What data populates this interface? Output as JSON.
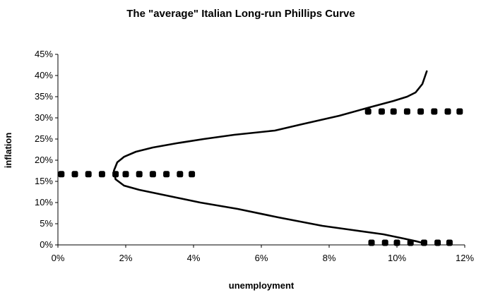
{
  "chart_data": {
    "type": "line",
    "title": "The \"average\" Italian Long-run Phillips Curve",
    "xlabel": "unemployment",
    "ylabel": "inflation",
    "xlim": [
      0,
      12
    ],
    "ylim": [
      0,
      45
    ],
    "x_ticks": [
      "0%",
      "2%",
      "4%",
      "6%",
      "8%",
      "10%",
      "12%"
    ],
    "y_ticks": [
      "0%",
      "5%",
      "10%",
      "15%",
      "20%",
      "25%",
      "30%",
      "35%",
      "40%",
      "45%"
    ],
    "grid": false,
    "legend": "none",
    "series": [
      {
        "style": "solid",
        "color": "#000000",
        "x": [
          10.88,
          10.75,
          10.55,
          10.3,
          9.9,
          9.2,
          8.3,
          7.2,
          6.4,
          5.2,
          4.3,
          3.5,
          2.8,
          2.3,
          1.95,
          1.75,
          1.65,
          1.7,
          1.95,
          2.4,
          3.3,
          4.2,
          5.3,
          6.5,
          7.8,
          8.7,
          9.6,
          10.2,
          10.6,
          10.85
        ],
        "y": [
          41,
          38,
          36,
          35,
          34,
          32.5,
          30.5,
          28.5,
          27,
          26,
          25,
          24,
          23,
          22,
          20.8,
          19.5,
          17.5,
          15.5,
          14,
          13,
          11.5,
          10,
          8.5,
          6.5,
          4.5,
          3.5,
          2.5,
          1.5,
          0.8,
          0.3
        ]
      },
      {
        "style": "dotted",
        "color": "#000000",
        "x": [
          0.1,
          0.5,
          0.9,
          1.3,
          1.7,
          2.0,
          2.4,
          2.8,
          3.2,
          3.6,
          3.95
        ],
        "y": [
          16.7,
          16.7,
          16.7,
          16.7,
          16.7,
          16.7,
          16.7,
          16.7,
          16.7,
          16.7,
          16.7
        ]
      },
      {
        "style": "dotted",
        "color": "#000000",
        "x": [
          9.15,
          9.55,
          9.9,
          10.3,
          10.7,
          11.1,
          11.5,
          11.85
        ],
        "y": [
          31.5,
          31.5,
          31.5,
          31.5,
          31.5,
          31.5,
          31.5,
          31.5
        ]
      },
      {
        "style": "dotted",
        "color": "#000000",
        "x": [
          9.25,
          9.65,
          10.0,
          10.4,
          10.8,
          11.2,
          11.55
        ],
        "y": [
          0.5,
          0.5,
          0.5,
          0.5,
          0.5,
          0.5,
          0.5
        ]
      }
    ]
  }
}
